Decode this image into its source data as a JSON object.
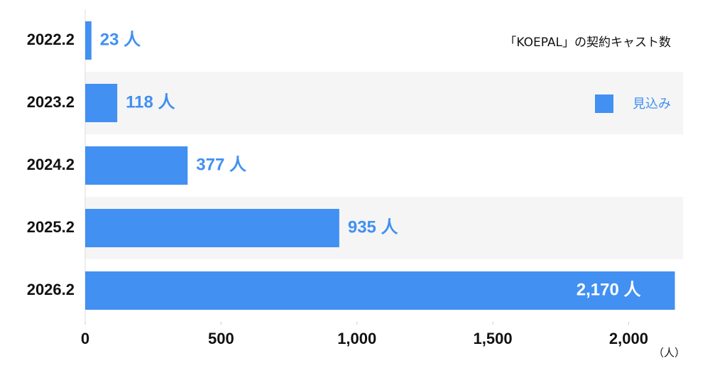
{
  "chart_data": {
    "type": "bar",
    "orientation": "horizontal",
    "title": "「KOEPAL」の契約キャスト数",
    "x_label": "（人）",
    "categories": [
      "2022.2",
      "2023.2",
      "2024.2",
      "2025.2",
      "2026.2"
    ],
    "series": [
      {
        "name": "見込み",
        "color": "#4190f2",
        "values": [
          23,
          118,
          377,
          935,
          2170
        ],
        "value_labels": [
          "23 人",
          "118 人",
          "377 人",
          "935 人",
          "2,170 人"
        ]
      }
    ],
    "xlim": [
      0,
      2200
    ],
    "xticks": [
      0,
      500,
      {
        "value": 1000,
        "label": "1,000"
      },
      {
        "value": 1500,
        "label": "1,500"
      },
      {
        "value": 2000,
        "label": "2,000"
      }
    ],
    "legend": "top-right"
  }
}
